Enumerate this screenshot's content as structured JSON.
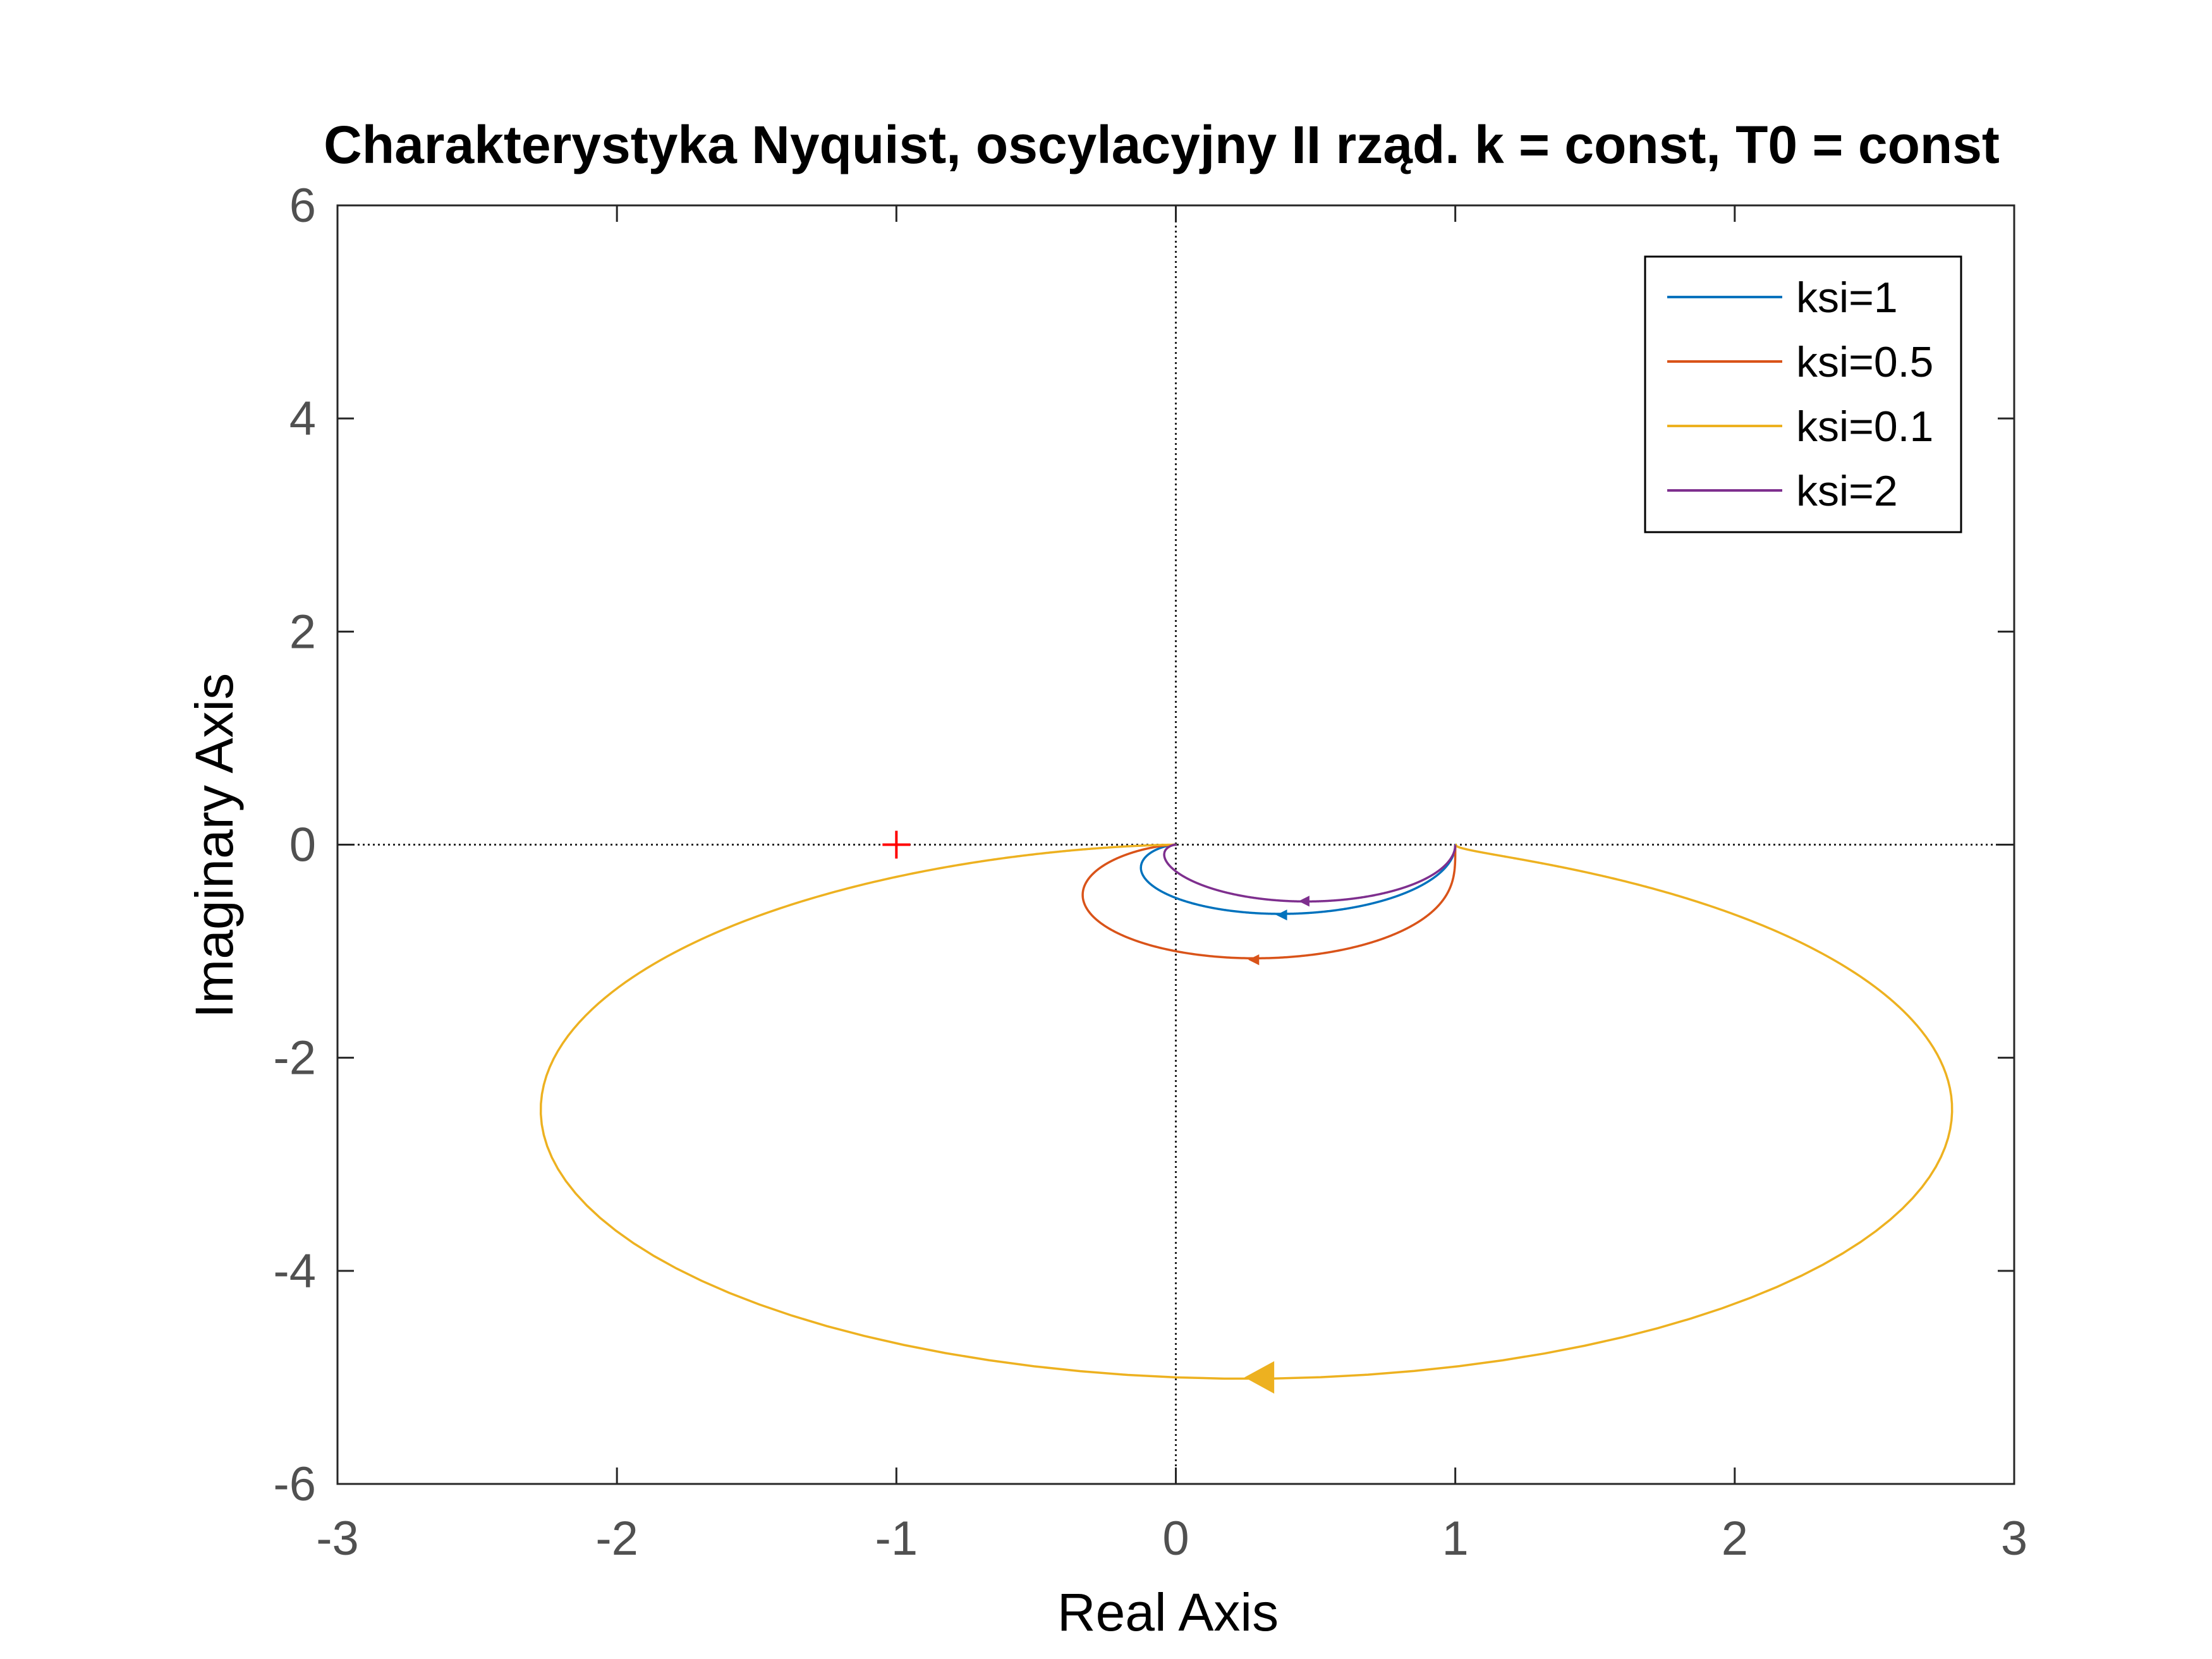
{
  "chart_data": {
    "type": "line",
    "title": "Charakterystyka Nyquist, oscylacyjny II rząd. k = const, T0 = const",
    "xlabel": "Real Axis",
    "ylabel": "Imaginary Axis",
    "xlim": [
      -3,
      3
    ],
    "ylim": [
      -6,
      6
    ],
    "xticks": [
      -3,
      -2,
      -1,
      0,
      1,
      2,
      3
    ],
    "yticks": [
      -6,
      -4,
      -2,
      0,
      2,
      4,
      6
    ],
    "xtick_labels": [
      "-3",
      "-2",
      "-1",
      "0",
      "1",
      "2",
      "3"
    ],
    "ytick_labels": [
      "-6",
      "-4",
      "-2",
      "0",
      "2",
      "4",
      "6"
    ],
    "grid": false,
    "zero_lines": true,
    "legend_position": "top-right",
    "critical_point": {
      "x": -1,
      "y": 0,
      "marker": "+",
      "color": "#ff0000"
    },
    "k": 1,
    "series": [
      {
        "name": "ksi=1",
        "ksi": 1,
        "color": "#0072BD",
        "arrow_at": [
          0.38,
          -0.66
        ]
      },
      {
        "name": "ksi=0.5",
        "ksi": 0.5,
        "color": "#D95319",
        "arrow_at": [
          0.28,
          -1.08
        ]
      },
      {
        "name": "ksi=0.1",
        "ksi": 0.1,
        "color": "#EDB120",
        "arrow_at": [
          0.3,
          -5.0
        ]
      },
      {
        "name": "ksi=2",
        "ksi": 2,
        "color": "#7E2F8E",
        "arrow_at": [
          0.46,
          -0.53
        ]
      }
    ]
  }
}
